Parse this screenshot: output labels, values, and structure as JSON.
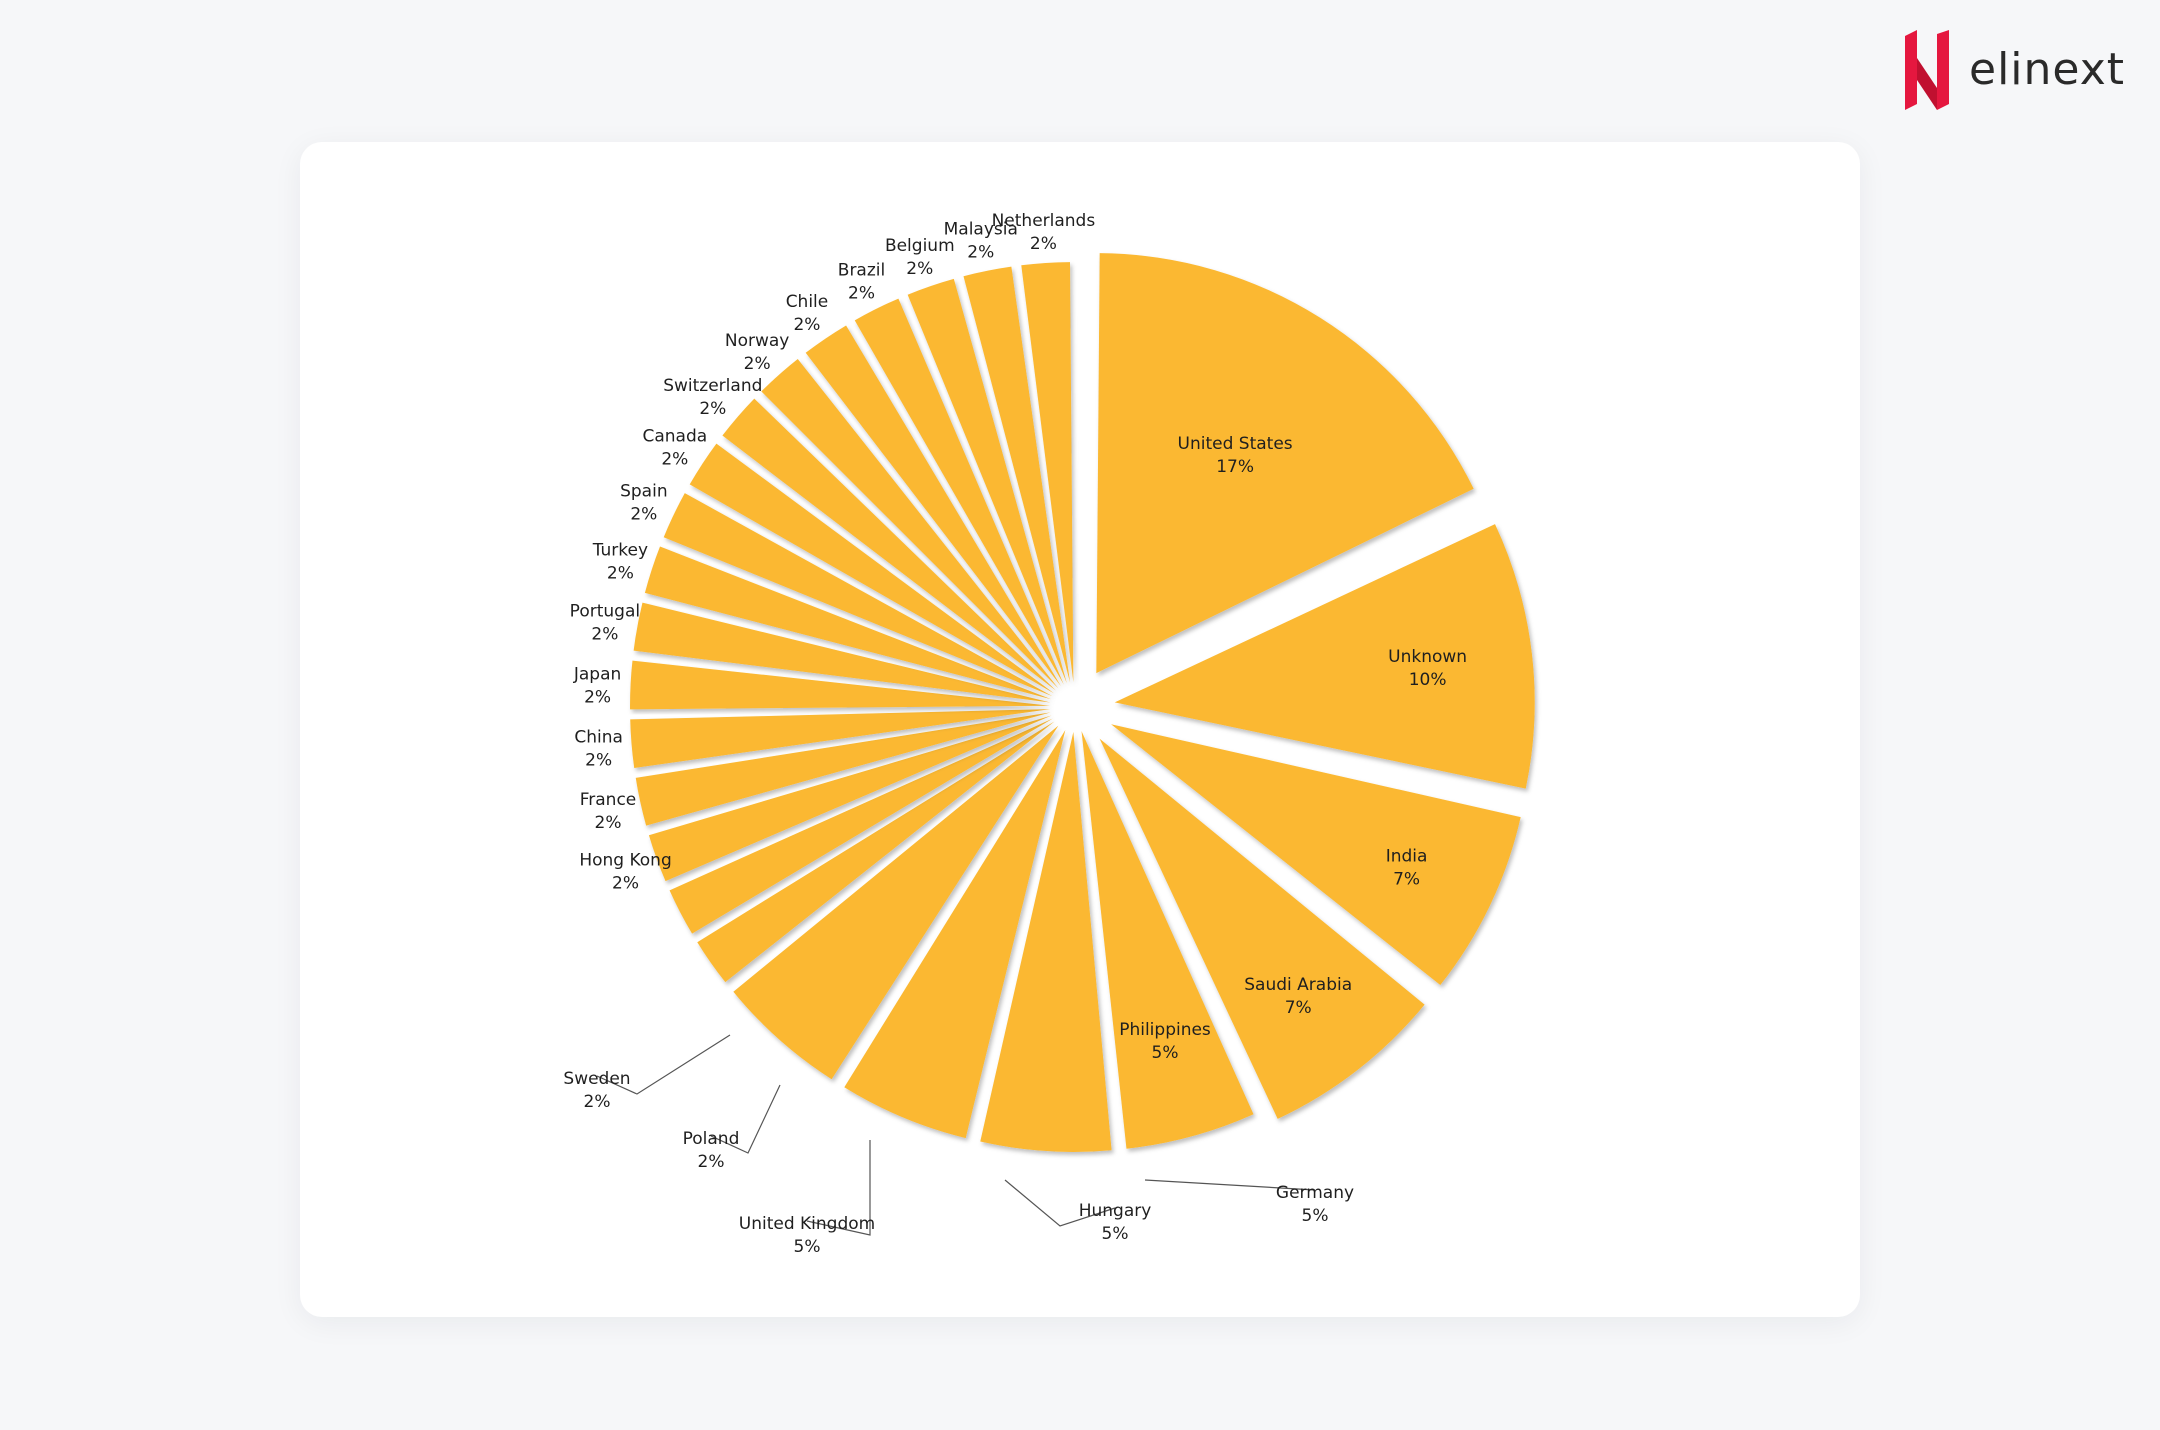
{
  "brand": {
    "name": "elinext",
    "accent": "#e5173f"
  },
  "chart_data": {
    "type": "pie",
    "exploded": true,
    "slice_color": "#fbb830",
    "categories": [
      "United States",
      "Unknown",
      "India",
      "Saudi Arabia",
      "Philippines",
      "Germany",
      "Hungary",
      "United Kingdom",
      "Poland",
      "Sweden",
      "Hong Kong",
      "France",
      "China",
      "Japan",
      "Portugal",
      "Turkey",
      "Spain",
      "Canada",
      "Switzerland",
      "Norway",
      "Chile",
      "Brazil",
      "Belgium",
      "Malaysia",
      "Netherlands"
    ],
    "values": [
      17,
      10,
      7,
      7,
      5,
      5,
      5,
      5,
      2,
      2,
      2,
      2,
      2,
      2,
      2,
      2,
      2,
      2,
      2,
      2,
      2,
      2,
      2,
      2,
      2
    ],
    "value_labels": [
      "17%",
      "10%",
      "7%",
      "7%",
      "5%",
      "5%",
      "5%",
      "5%",
      "2%",
      "2%",
      "2%",
      "2%",
      "2%",
      "2%",
      "2%",
      "2%",
      "2%",
      "2%",
      "2%",
      "2%",
      "2%",
      "2%",
      "2%",
      "2%",
      "2%"
    ],
    "legend": "none"
  }
}
